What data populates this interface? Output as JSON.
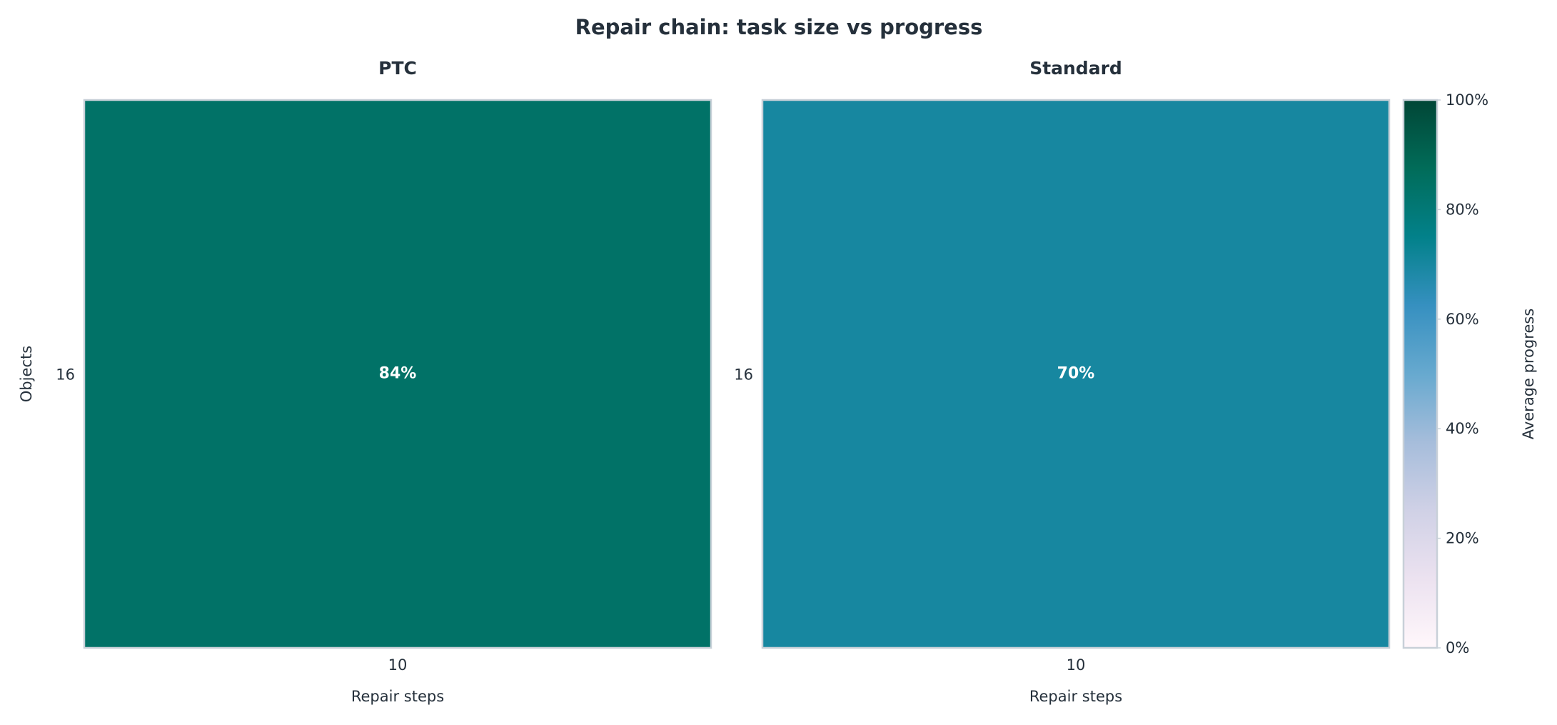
{
  "title": "Repair chain: task size vs progress",
  "chart_data": [
    {
      "type": "heatmap",
      "title": "PTC",
      "x_categories": [
        "10"
      ],
      "y_categories": [
        "16"
      ],
      "values": [
        [
          84
        ]
      ],
      "value_labels": [
        [
          "84%"
        ]
      ],
      "xlabel": "Repair steps",
      "ylabel": "Objects"
    },
    {
      "type": "heatmap",
      "title": "Standard",
      "x_categories": [
        "10"
      ],
      "y_categories": [
        "16"
      ],
      "values": [
        [
          70
        ]
      ],
      "value_labels": [
        [
          "70%"
        ]
      ],
      "xlabel": "Repair steps"
    }
  ],
  "colorbar": {
    "label": "Average progress",
    "lim": [
      0,
      100
    ],
    "ticks": [
      {
        "value": 0,
        "label": "0%"
      },
      {
        "value": 20,
        "label": "20%"
      },
      {
        "value": 40,
        "label": "40%"
      },
      {
        "value": 60,
        "label": "60%"
      },
      {
        "value": 80,
        "label": "80%"
      },
      {
        "value": 100,
        "label": "100%"
      }
    ],
    "colormap": [
      "#fff7fb",
      "#ece2f0",
      "#d0d1e6",
      "#a6bddb",
      "#67a9cf",
      "#3690c0",
      "#02818a",
      "#016c59",
      "#014636"
    ]
  }
}
